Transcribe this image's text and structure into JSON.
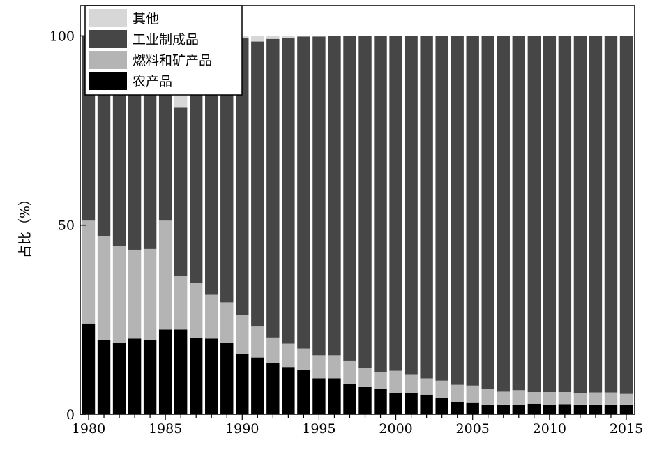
{
  "chart_data": {
    "type": "bar",
    "stacked": true,
    "percent": true,
    "ylabel": "占比（%）",
    "xlabel": "",
    "ylim": [
      0,
      108
    ],
    "yticks": [
      0,
      50,
      100
    ],
    "xticks": [
      1980,
      1985,
      1990,
      1995,
      2000,
      2005,
      2010,
      2015
    ],
    "grid": false,
    "legend_position": "top-left",
    "categories": [
      1980,
      1981,
      1982,
      1983,
      1984,
      1985,
      1986,
      1987,
      1988,
      1989,
      1990,
      1991,
      1992,
      1993,
      1994,
      1995,
      1996,
      1997,
      1998,
      1999,
      2000,
      2001,
      2002,
      2003,
      2004,
      2005,
      2006,
      2007,
      2008,
      2009,
      2010,
      2011,
      2012,
      2013,
      2014,
      2015
    ],
    "series": [
      {
        "name": "农产品",
        "color": "#000000",
        "values": [
          24,
          19.7,
          18.8,
          20,
          19.6,
          22.4,
          22.4,
          20.1,
          20,
          18.8,
          16,
          15,
          13.5,
          12.5,
          11.8,
          9.5,
          9.5,
          8,
          7.2,
          6.7,
          5.7,
          5.7,
          5.2,
          4.3,
          3.2,
          3,
          2.6,
          2.6,
          2.4,
          2.8,
          2.5,
          2.7,
          2.6,
          2.6,
          2.6,
          2.6
        ]
      },
      {
        "name": "燃料和矿产品",
        "color": "#b4b4b4",
        "values": [
          27.2,
          27.3,
          25.8,
          23.5,
          24.1,
          28.8,
          14.1,
          14.7,
          11.6,
          10.8,
          10.2,
          8.2,
          6.8,
          6.2,
          5.6,
          6.1,
          6.1,
          6.2,
          5,
          4.5,
          5.8,
          4.9,
          4.3,
          4.6,
          4.6,
          4.6,
          4.2,
          3.4,
          4,
          3.1,
          3.4,
          3.2,
          3,
          3.2,
          3.2,
          2.8
        ]
      },
      {
        "name": "工业制成品",
        "color": "#464646",
        "values": [
          48.8,
          53,
          55.4,
          56.5,
          56.3,
          48.8,
          44.5,
          65.2,
          68.4,
          70.4,
          73.3,
          75.3,
          78.9,
          80.8,
          82.4,
          84.2,
          84.4,
          85.7,
          87.7,
          88.8,
          88.5,
          89.4,
          90.5,
          91.1,
          92.2,
          92.4,
          93.2,
          94,
          93.6,
          94.1,
          94.1,
          94.1,
          94.4,
          94.2,
          94.2,
          94.6
        ]
      },
      {
        "name": "其他",
        "color": "#d7d7d7",
        "values": [
          0,
          0,
          0,
          0,
          0,
          0,
          4.5,
          0,
          0,
          0,
          0.5,
          1.5,
          0.8,
          0.5,
          0.2,
          0.2,
          0,
          0.1,
          0.1,
          0,
          0,
          0,
          0,
          0,
          0,
          0,
          0,
          0,
          0,
          0,
          0,
          0,
          0,
          0,
          0,
          0
        ]
      }
    ],
    "legend_order": [
      "其他",
      "工业制成品",
      "燃料和矿产品",
      "农产品"
    ]
  }
}
